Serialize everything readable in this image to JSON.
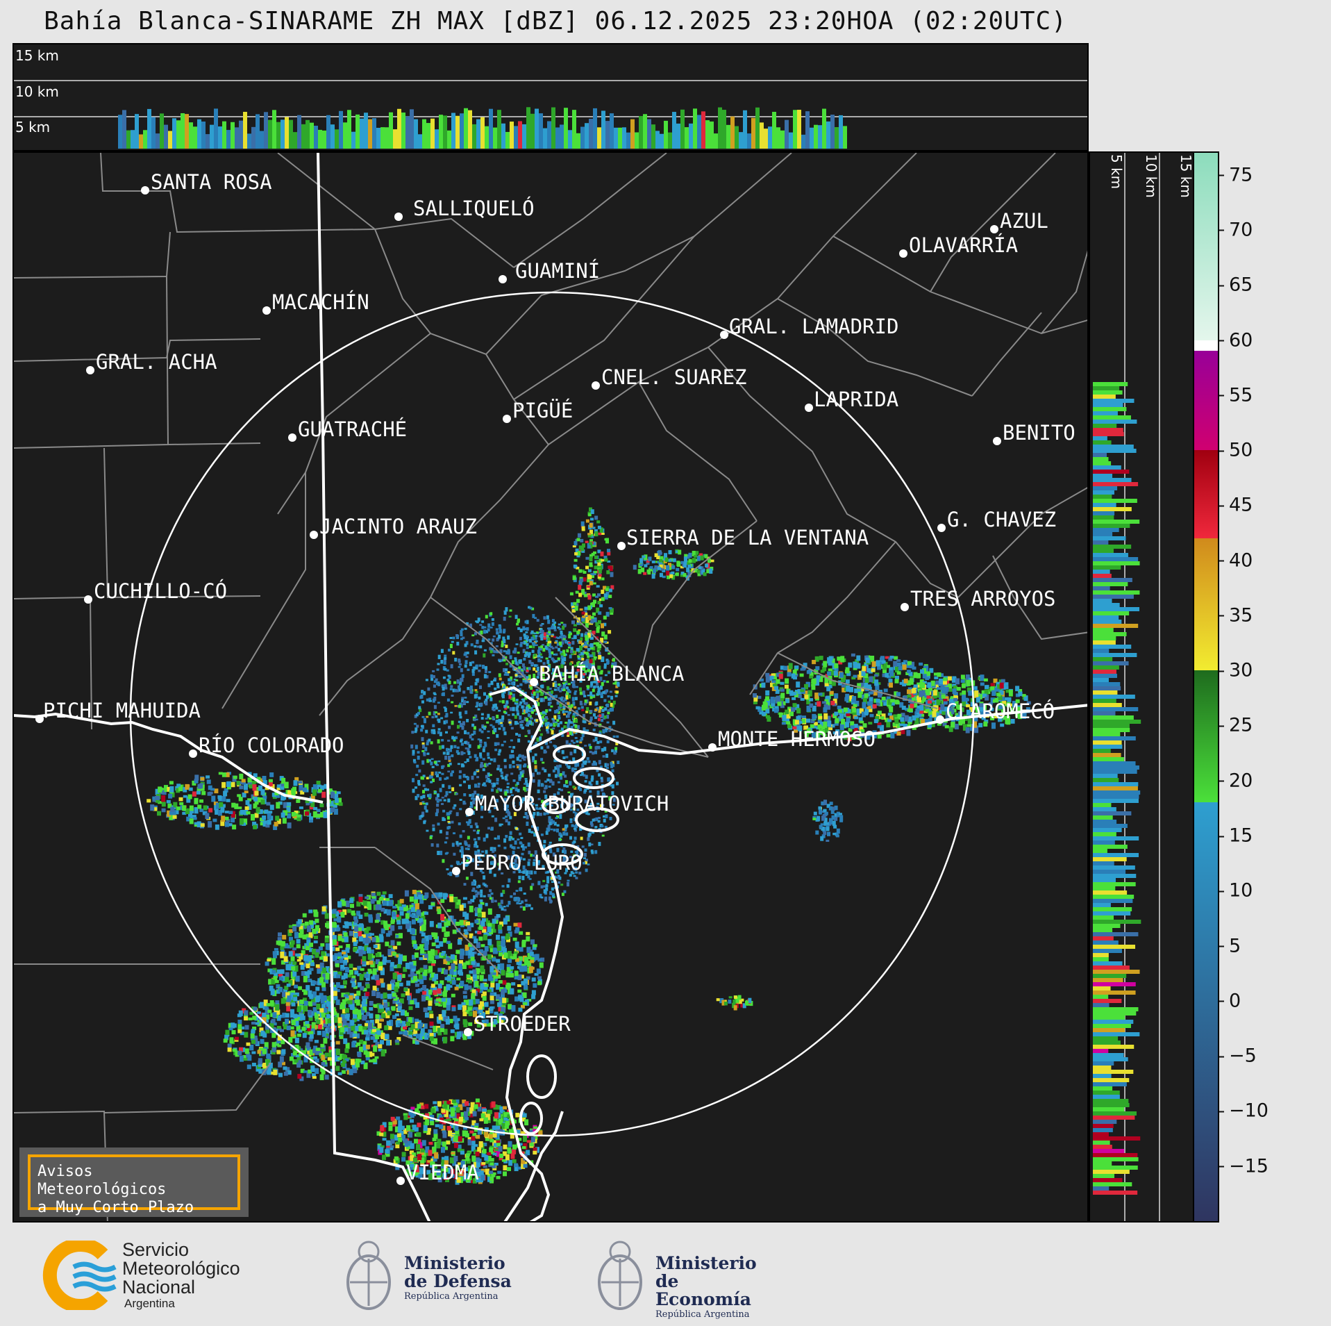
{
  "title": "Bahía Blanca-SINARAME ZH MAX [dBZ] 06.12.2025 23:20HOA (02:20UTC)",
  "top_panel": {
    "height_labels": [
      "15 km",
      "10 km",
      "5 km"
    ]
  },
  "side_panel": {
    "height_labels": [
      "5 km",
      "10 km",
      "15 km"
    ]
  },
  "cities": [
    {
      "name": "SANTA ROSA"
    },
    {
      "name": "SALLIQUELÓ"
    },
    {
      "name": "GUAMINÍ"
    },
    {
      "name": "AZUL"
    },
    {
      "name": "OLAVARRÍA"
    },
    {
      "name": "MACACHÍN"
    },
    {
      "name": "GRAL. LAMADRID"
    },
    {
      "name": "GRAL. ACHA"
    },
    {
      "name": "CNEL. SUAREZ"
    },
    {
      "name": "LAPRIDA"
    },
    {
      "name": "PIGÜÉ"
    },
    {
      "name": "GUATRACHÉ"
    },
    {
      "name": "BENITO"
    },
    {
      "name": "G. CHAVEZ"
    },
    {
      "name": "JACINTO ARAUZ"
    },
    {
      "name": "SIERRA DE LA VENTANA"
    },
    {
      "name": "CUCHILLO-CÓ"
    },
    {
      "name": "TRES ARROYOS"
    },
    {
      "name": "BAHÍA BLANCA"
    },
    {
      "name": "PICHI MAHUIDA"
    },
    {
      "name": "CLAROMECÓ"
    },
    {
      "name": "MONTE HERMOSO"
    },
    {
      "name": "RÍO COLORADO"
    },
    {
      "name": "MAYOR BURATOVICH"
    },
    {
      "name": "PEDRO LURO"
    },
    {
      "name": "STROEDER"
    },
    {
      "name": "VIEDMA"
    }
  ],
  "colorbar": {
    "unit": "dBZ",
    "min": -20,
    "max": 77,
    "ticks": [
      "75",
      "70",
      "65",
      "60",
      "55",
      "50",
      "45",
      "40",
      "35",
      "30",
      "25",
      "20",
      "15",
      "10",
      "5",
      "0",
      "−5",
      "−10",
      "−15"
    ],
    "bands": [
      {
        "from": -20,
        "to": 18,
        "color": "#2e9fd0",
        "low_color": "#2f3560"
      },
      {
        "from": 18,
        "to": 30,
        "color": "#1e6b1e",
        "low_color": "#4be03a"
      },
      {
        "from": 30,
        "to": 42,
        "color": "#d08a1c",
        "low_color": "#f2ec30"
      },
      {
        "from": 42,
        "to": 50,
        "color": "#a00010",
        "low_color": "#f0283c"
      },
      {
        "from": 50,
        "to": 59,
        "color": "#980098",
        "low_color": "#d00070"
      },
      {
        "from": 59,
        "to": 60,
        "color": "#ffffff",
        "low_color": "#ffffff"
      },
      {
        "from": 60,
        "to": 77,
        "color": "#8cdcbc",
        "low_color": "#e4f6ec"
      }
    ]
  },
  "notice": {
    "line1": "Avisos Meteorológicos",
    "line2": "a Muy Corto Plazo"
  },
  "logos": {
    "smn": {
      "line1": "Servicio",
      "line2": "Meteorológico",
      "line3": "Nacional",
      "line4": "Argentina"
    },
    "defensa": {
      "line1": "Ministerio",
      "line2": "de Defensa",
      "line3": "República Argentina"
    },
    "economia": {
      "line1": "Ministerio",
      "line2": "de Economía",
      "line3": "República Argentina"
    }
  },
  "colors": {
    "background": "#e6e6e6",
    "panel": "#1c1c1c",
    "notice_border": "#f5a400",
    "logo_accent": "#f5a400",
    "logo_blue": "#2a9fd8"
  }
}
